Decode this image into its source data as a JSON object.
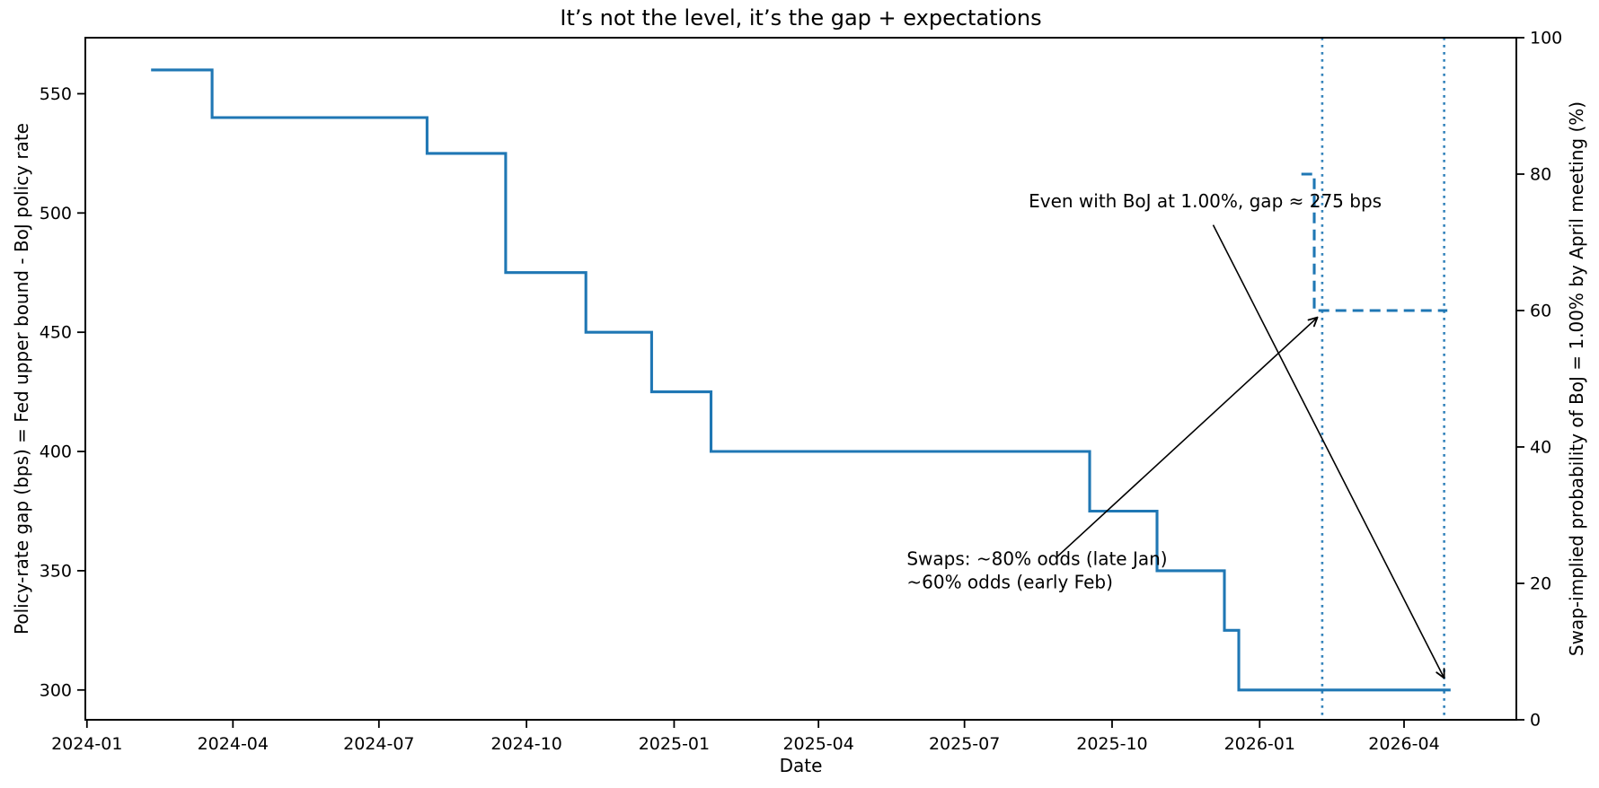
{
  "page": {
    "background": "#ffffff"
  },
  "chart_data": {
    "type": "line",
    "title": "It’s not the level, it’s the gap + expectations",
    "xlabel": "Date",
    "grid": false,
    "legend": "none",
    "x_axis": {
      "lim": [
        "2023-12-31",
        "2026-06-10"
      ],
      "ticks": [
        {
          "label": "2024-01",
          "date": "2024-01-01"
        },
        {
          "label": "2024-04",
          "date": "2024-04-01"
        },
        {
          "label": "2024-07",
          "date": "2024-07-01"
        },
        {
          "label": "2024-10",
          "date": "2024-10-01"
        },
        {
          "label": "2025-01",
          "date": "2025-01-01"
        },
        {
          "label": "2025-04",
          "date": "2025-04-01"
        },
        {
          "label": "2025-07",
          "date": "2025-07-01"
        },
        {
          "label": "2025-10",
          "date": "2025-10-01"
        },
        {
          "label": "2026-01",
          "date": "2026-01-01"
        },
        {
          "label": "2026-04",
          "date": "2026-04-01"
        }
      ]
    },
    "left_axis": {
      "label": "Policy-rate gap (bps) = Fed upper bound - BoJ policy rate",
      "lim": [
        287.5,
        573.5
      ],
      "ticks": [
        300,
        350,
        400,
        450,
        500,
        550
      ]
    },
    "right_axis": {
      "label": "Swap-implied probability of BoJ = 1.00% by April meeting (%)",
      "lim": [
        0,
        100
      ],
      "ticks": [
        0,
        20,
        40,
        60,
        80,
        100
      ]
    },
    "series": [
      {
        "slug": "policy-rate-gap-line",
        "name": "Policy-rate gap",
        "axis": "left",
        "style": "solid",
        "color": "#1f77b4",
        "step": "post",
        "points": [
          [
            "2024-02-10",
            560
          ],
          [
            "2024-03-19",
            540
          ],
          [
            "2024-07-31",
            525
          ],
          [
            "2024-09-18",
            475
          ],
          [
            "2024-11-07",
            450
          ],
          [
            "2024-12-18",
            425
          ],
          [
            "2025-01-24",
            400
          ],
          [
            "2025-09-17",
            375
          ],
          [
            "2025-10-29",
            350
          ],
          [
            "2025-12-10",
            325
          ],
          [
            "2025-12-19",
            300
          ],
          [
            "2026-04-30",
            300
          ]
        ]
      },
      {
        "slug": "swap-probability-line",
        "name": "Swap-implied probability of BoJ = 1.00% by April meeting",
        "axis": "right",
        "style": "dashed",
        "color": "#1f77b4",
        "step": "post",
        "points": [
          [
            "2026-01-27",
            80
          ],
          [
            "2026-02-04",
            60
          ],
          [
            "2026-04-28",
            60
          ]
        ]
      }
    ],
    "vlines": [
      {
        "slug": "early-feb-vline",
        "date": "2026-02-09",
        "style": "dotted",
        "color": "#1f77b4"
      },
      {
        "slug": "april-meeting-vline",
        "date": "2026-04-26",
        "style": "dotted",
        "color": "#1f77b4"
      }
    ],
    "annotations": [
      {
        "slug": "gap-at-april-annotation",
        "text_lines": [
          "Even with BoJ at 1.00%, gap ≈ 275 bps"
        ],
        "color": "#000000",
        "text_pos": {
          "date": "2025-08-10",
          "value": 505,
          "axis": "left",
          "align": "left"
        },
        "arrow": {
          "from": {
            "date": "2025-12-03",
            "value": 495,
            "axis": "left"
          },
          "to": {
            "date": "2026-04-26",
            "value": 305,
            "axis": "left"
          }
        }
      },
      {
        "slug": "swaps-odds-annotation",
        "text_lines": [
          "Swaps: ~80% odds (late Jan)",
          "~60% odds (early Feb)"
        ],
        "color": "#000000",
        "text_pos": {
          "date": "2025-05-26",
          "value": 355,
          "axis": "left",
          "align": "left"
        },
        "arrow": {
          "from": {
            "date": "2025-08-28",
            "value": 356,
            "axis": "left"
          },
          "to": {
            "date": "2026-02-06",
            "value": 59,
            "axis": "right"
          }
        }
      }
    ]
  }
}
